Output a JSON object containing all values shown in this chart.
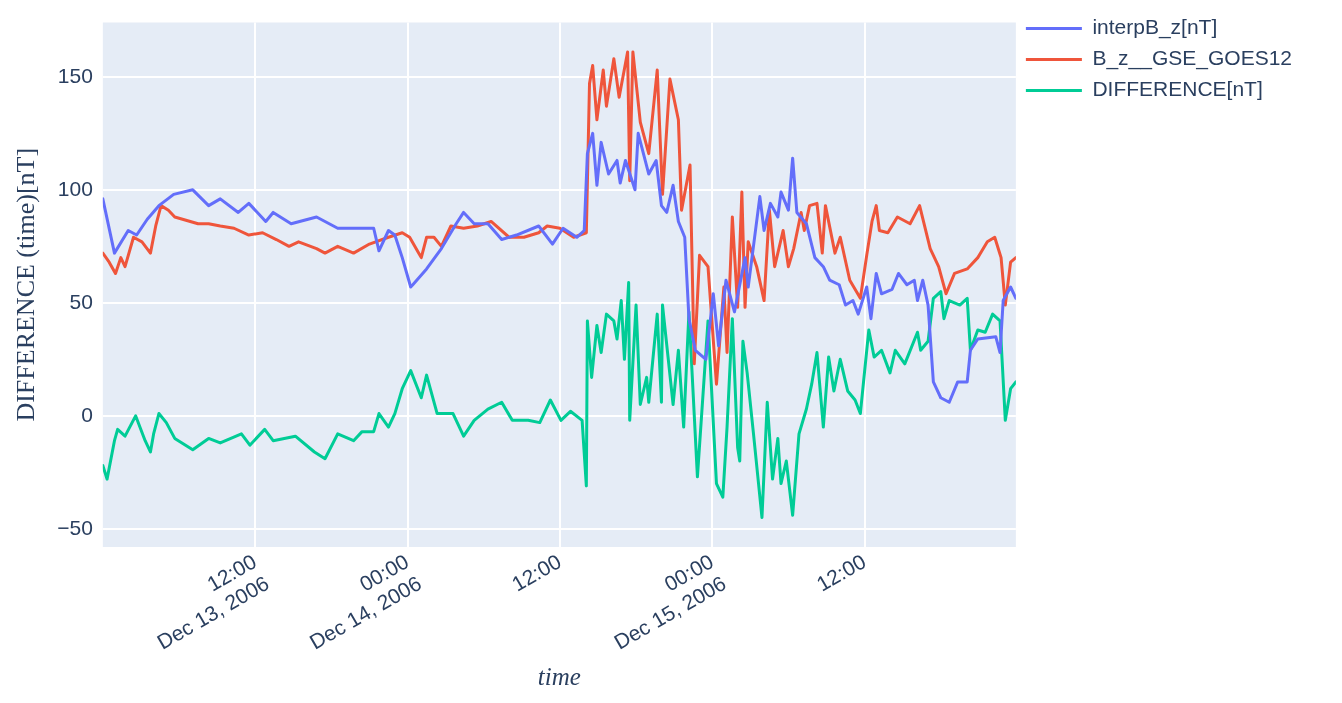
{
  "chart_data": {
    "type": "line",
    "xlabel": "time",
    "ylabel": "DIFFERENCE (time)[nT]",
    "xlim": [
      "2006-12-13T00:00",
      "2006-12-15T23:55"
    ],
    "ylim": [
      -58,
      174
    ],
    "xticks": [
      {
        "value": "2006-12-13T12:00",
        "label": "12:00\nDec 13, 2006"
      },
      {
        "value": "2006-12-14T00:00",
        "label": "00:00\nDec 14, 2006"
      },
      {
        "value": "2006-12-14T12:00",
        "label": "12:00"
      },
      {
        "value": "2006-12-15T00:00",
        "label": "00:00\nDec 15, 2006"
      },
      {
        "value": "2006-12-15T12:00",
        "label": "12:00"
      }
    ],
    "yticks": [
      {
        "value": -50,
        "label": "−50"
      },
      0,
      50,
      100,
      150
    ],
    "grid": true,
    "legend": "top right",
    "marker": "none",
    "line_style": "solid",
    "series": [
      {
        "name": "interpB_z[nT]",
        "color": "#636efa",
        "x": [
          "2006-12-13T00:00",
          "2006-12-13T00:55",
          "2006-12-13T02:00",
          "2006-12-13T02:40",
          "2006-12-13T03:30",
          "2006-12-13T04:25",
          "2006-12-13T05:35",
          "2006-12-13T07:05",
          "2006-12-13T08:20",
          "2006-12-13T09:15",
          "2006-12-13T10:40",
          "2006-12-13T11:30",
          "2006-12-13T12:50",
          "2006-12-13T13:25",
          "2006-12-13T14:50",
          "2006-12-13T16:50",
          "2006-12-13T18:30",
          "2006-12-13T19:55",
          "2006-12-13T21:20",
          "2006-12-13T21:45",
          "2006-12-13T22:30",
          "2006-12-13T23:00",
          "2006-12-13T23:35",
          "2006-12-14T00:15",
          "2006-12-14T00:25",
          "2006-12-14T01:30",
          "2006-12-14T02:40",
          "2006-12-14T03:50",
          "2006-12-14T04:25",
          "2006-12-14T05:15",
          "2006-12-14T06:20",
          "2006-12-14T07:25",
          "2006-12-14T08:35",
          "2006-12-14T10:20",
          "2006-12-14T11:25",
          "2006-12-14T12:15",
          "2006-12-14T13:20",
          "2006-12-14T13:55",
          "2006-12-14T14:10",
          "2006-12-14T14:35",
          "2006-12-14T14:55",
          "2006-12-14T15:15",
          "2006-12-14T15:50",
          "2006-12-14T16:30",
          "2006-12-14T16:45",
          "2006-12-14T17:10",
          "2006-12-14T17:55",
          "2006-12-14T18:10",
          "2006-12-14T19:00",
          "2006-12-14T19:35",
          "2006-12-14T20:00",
          "2006-12-14T20:25",
          "2006-12-14T20:55",
          "2006-12-14T21:20",
          "2006-12-14T21:50",
          "2006-12-14T22:10",
          "2006-12-14T22:40",
          "2006-12-14T23:30",
          "2006-12-15T00:05",
          "2006-12-15T00:30",
          "2006-12-15T01:05",
          "2006-12-15T01:45",
          "2006-12-15T02:35",
          "2006-12-15T02:50",
          "2006-12-15T03:45",
          "2006-12-15T04:05",
          "2006-12-15T04:35",
          "2006-12-15T05:10",
          "2006-12-15T05:25",
          "2006-12-15T06:00",
          "2006-12-15T06:20",
          "2006-12-15T06:40",
          "2006-12-15T07:25",
          "2006-12-15T08:05",
          "2006-12-15T08:45",
          "2006-12-15T09:15",
          "2006-12-15T10:00",
          "2006-12-15T10:30",
          "2006-12-15T11:05",
          "2006-12-15T11:30",
          "2006-12-15T12:10",
          "2006-12-15T12:30",
          "2006-12-15T12:55",
          "2006-12-15T13:20",
          "2006-12-15T14:10",
          "2006-12-15T14:40",
          "2006-12-15T15:20",
          "2006-12-15T15:55",
          "2006-12-15T16:10",
          "2006-12-15T16:35",
          "2006-12-15T17:00",
          "2006-12-15T17:25",
          "2006-12-15T18:00",
          "2006-12-15T18:40",
          "2006-12-15T19:20",
          "2006-12-15T20:05",
          "2006-12-15T20:20",
          "2006-12-15T20:55",
          "2006-12-15T22:20",
          "2006-12-15T22:40",
          "2006-12-15T22:55",
          "2006-12-15T23:30",
          "2006-12-15T23:55"
        ],
        "values": [
          96,
          72,
          82,
          80,
          87,
          93,
          98,
          100,
          93,
          96,
          90,
          94,
          86,
          90,
          85,
          88,
          83,
          83,
          83,
          73,
          82,
          80,
          70,
          57,
          58,
          65,
          74,
          85,
          90,
          85,
          85,
          78,
          80,
          84,
          76,
          83,
          79,
          82,
          116,
          125,
          102,
          121,
          107,
          113,
          103,
          113,
          100,
          125,
          107,
          113,
          93,
          90,
          102,
          86,
          79,
          43,
          29,
          25,
          54,
          31,
          60,
          46,
          70,
          57,
          97,
          82,
          94,
          88,
          99,
          91,
          114,
          90,
          85,
          70,
          66,
          60,
          58,
          49,
          51,
          45,
          57,
          43,
          63,
          54,
          56,
          63,
          58,
          60,
          51,
          60,
          49,
          15,
          8,
          6,
          15,
          15,
          29,
          34,
          35,
          28,
          51,
          57,
          52
        ]
      },
      {
        "name": "B_z__GSE_GOES12",
        "color": "#ef553b",
        "x": [
          "2006-12-13T00:00",
          "2006-12-13T00:30",
          "2006-12-13T01:00",
          "2006-12-13T01:25",
          "2006-12-13T01:45",
          "2006-12-13T02:25",
          "2006-12-13T03:05",
          "2006-12-13T03:45",
          "2006-12-13T04:10",
          "2006-12-13T04:35",
          "2006-12-13T05:10",
          "2006-12-13T05:40",
          "2006-12-13T07:30",
          "2006-12-13T08:20",
          "2006-12-13T09:15",
          "2006-12-13T10:20",
          "2006-12-13T11:30",
          "2006-12-13T12:35",
          "2006-12-13T13:40",
          "2006-12-13T14:40",
          "2006-12-13T15:25",
          "2006-12-13T16:50",
          "2006-12-13T17:30",
          "2006-12-13T18:30",
          "2006-12-13T19:45",
          "2006-12-13T21:00",
          "2006-12-13T22:30",
          "2006-12-13T23:35",
          "2006-12-14T00:10",
          "2006-12-14T01:05",
          "2006-12-14T01:30",
          "2006-12-14T02:05",
          "2006-12-14T02:40",
          "2006-12-14T03:25",
          "2006-12-14T04:25",
          "2006-12-14T05:30",
          "2006-12-14T06:35",
          "2006-12-14T08:00",
          "2006-12-14T09:10",
          "2006-12-14T10:20",
          "2006-12-14T11:00",
          "2006-12-14T12:00",
          "2006-12-14T13:05",
          "2006-12-14T14:05",
          "2006-12-14T14:20",
          "2006-12-14T14:35",
          "2006-12-14T14:55",
          "2006-12-14T15:25",
          "2006-12-14T15:40",
          "2006-12-14T16:15",
          "2006-12-14T16:40",
          "2006-12-14T17:20",
          "2006-12-14T17:30",
          "2006-12-14T17:45",
          "2006-12-14T18:20",
          "2006-12-14T19:00",
          "2006-12-14T19:40",
          "2006-12-14T20:05",
          "2006-12-14T20:40",
          "2006-12-14T21:20",
          "2006-12-14T21:35",
          "2006-12-14T22:15",
          "2006-12-14T22:35",
          "2006-12-14T23:00",
          "2006-12-14T23:40",
          "2006-12-15T00:20",
          "2006-12-15T00:55",
          "2006-12-15T01:10",
          "2006-12-15T01:35",
          "2006-12-15T02:00",
          "2006-12-15T02:20",
          "2006-12-15T02:35",
          "2006-12-15T02:50",
          "2006-12-15T03:30",
          "2006-12-15T04:05",
          "2006-12-15T04:30",
          "2006-12-15T04:55",
          "2006-12-15T05:35",
          "2006-12-15T06:00",
          "2006-12-15T06:25",
          "2006-12-15T07:00",
          "2006-12-15T07:15",
          "2006-12-15T07:40",
          "2006-12-15T08:15",
          "2006-12-15T08:40",
          "2006-12-15T08:55",
          "2006-12-15T09:40",
          "2006-12-15T10:05",
          "2006-12-15T10:50",
          "2006-12-15T11:40",
          "2006-12-15T12:10",
          "2006-12-15T12:35",
          "2006-12-15T12:55",
          "2006-12-15T13:10",
          "2006-12-15T13:50",
          "2006-12-15T14:35",
          "2006-12-15T15:35",
          "2006-12-15T16:20",
          "2006-12-15T17:10",
          "2006-12-15T17:50",
          "2006-12-15T18:25",
          "2006-12-15T19:05",
          "2006-12-15T20:05",
          "2006-12-15T20:55",
          "2006-12-15T21:40",
          "2006-12-15T22:15",
          "2006-12-15T22:45",
          "2006-12-15T23:05",
          "2006-12-15T23:30",
          "2006-12-15T23:55"
        ],
        "values": [
          72,
          68,
          63,
          70,
          66,
          79,
          77,
          72,
          84,
          93,
          91,
          88,
          85,
          85,
          84,
          83,
          80,
          81,
          78,
          75,
          77,
          74,
          72,
          75,
          72,
          76,
          79,
          81,
          79,
          70,
          79,
          79,
          75,
          84,
          83,
          84,
          86,
          79,
          79,
          81,
          84,
          83,
          79,
          81,
          147,
          155,
          131,
          153,
          137,
          158,
          141,
          161,
          104,
          161,
          130,
          116,
          153,
          98,
          149,
          131,
          91,
          111,
          23,
          71,
          66,
          14,
          57,
          28,
          88,
          48,
          99,
          48,
          77,
          66,
          51,
          91,
          66,
          82,
          66,
          74,
          90,
          82,
          93,
          94,
          72,
          93,
          72,
          79,
          60,
          52,
          71,
          86,
          93,
          82,
          81,
          88,
          85,
          93,
          74,
          66,
          54,
          63,
          65,
          70,
          77,
          79,
          70,
          49,
          68,
          70
        ]
      },
      {
        "name": "DIFFERENCE[nT]",
        "color": "#00cc96",
        "x": [
          "2006-12-13T00:00",
          "2006-12-13T00:20",
          "2006-12-13T00:55",
          "2006-12-13T01:10",
          "2006-12-13T01:45",
          "2006-12-13T02:35",
          "2006-12-13T03:20",
          "2006-12-13T03:45",
          "2006-12-13T04:00",
          "2006-12-13T04:25",
          "2006-12-13T05:00",
          "2006-12-13T05:40",
          "2006-12-13T07:05",
          "2006-12-13T08:20",
          "2006-12-13T09:15",
          "2006-12-13T10:55",
          "2006-12-13T11:35",
          "2006-12-13T12:45",
          "2006-12-13T13:25",
          "2006-12-13T15:10",
          "2006-12-13T16:40",
          "2006-12-13T17:30",
          "2006-12-13T18:30",
          "2006-12-13T19:45",
          "2006-12-13T20:25",
          "2006-12-13T21:20",
          "2006-12-13T21:45",
          "2006-12-13T22:30",
          "2006-12-13T23:00",
          "2006-12-13T23:35",
          "2006-12-14T00:15",
          "2006-12-14T01:05",
          "2006-12-14T01:30",
          "2006-12-14T02:20",
          "2006-12-14T03:35",
          "2006-12-14T04:25",
          "2006-12-14T05:15",
          "2006-12-14T06:20",
          "2006-12-14T07:25",
          "2006-12-14T08:15",
          "2006-12-14T09:30",
          "2006-12-14T10:25",
          "2006-12-14T11:15",
          "2006-12-14T12:05",
          "2006-12-14T12:50",
          "2006-12-14T13:45",
          "2006-12-14T14:05",
          "2006-12-14T14:10",
          "2006-12-14T14:30",
          "2006-12-14T14:55",
          "2006-12-14T15:15",
          "2006-12-14T15:40",
          "2006-12-14T16:15",
          "2006-12-14T16:30",
          "2006-12-14T16:50",
          "2006-12-14T17:05",
          "2006-12-14T17:25",
          "2006-12-14T17:30",
          "2006-12-14T18:00",
          "2006-12-14T18:20",
          "2006-12-14T18:50",
          "2006-12-14T19:00",
          "2006-12-14T19:40",
          "2006-12-14T20:00",
          "2006-12-14T20:05",
          "2006-12-14T20:55",
          "2006-12-14T21:20",
          "2006-12-14T21:45",
          "2006-12-14T22:10",
          "2006-12-14T22:50",
          "2006-12-14T23:40",
          "2006-12-15T00:20",
          "2006-12-15T00:50",
          "2006-12-15T01:10",
          "2006-12-15T01:35",
          "2006-12-15T02:00",
          "2006-12-15T02:10",
          "2006-12-15T02:25",
          "2006-12-15T02:45",
          "2006-12-15T03:15",
          "2006-12-15T03:55",
          "2006-12-15T04:20",
          "2006-12-15T04:45",
          "2006-12-15T05:10",
          "2006-12-15T05:25",
          "2006-12-15T05:50",
          "2006-12-15T06:20",
          "2006-12-15T06:50",
          "2006-12-15T07:25",
          "2006-12-15T07:50",
          "2006-12-15T08:15",
          "2006-12-15T08:45",
          "2006-12-15T09:10",
          "2006-12-15T09:35",
          "2006-12-15T10:05",
          "2006-12-15T10:40",
          "2006-12-15T11:15",
          "2006-12-15T11:40",
          "2006-12-15T11:55",
          "2006-12-15T12:20",
          "2006-12-15T12:45",
          "2006-12-15T13:20",
          "2006-12-15T14:00",
          "2006-12-15T14:25",
          "2006-12-15T15:10",
          "2006-12-15T16:10",
          "2006-12-15T16:25",
          "2006-12-15T17:00",
          "2006-12-15T17:25",
          "2006-12-15T18:00",
          "2006-12-15T18:15",
          "2006-12-15T18:40",
          "2006-12-15T19:30",
          "2006-12-15T20:05",
          "2006-12-15T20:20",
          "2006-12-15T20:55",
          "2006-12-15T21:30",
          "2006-12-15T22:05",
          "2006-12-15T22:40",
          "2006-12-15T23:05",
          "2006-12-15T23:30",
          "2006-12-15T23:55"
        ],
        "values": [
          -22,
          -28,
          -11,
          -6,
          -9,
          0,
          -11,
          -16,
          -8,
          1,
          -3,
          -10,
          -15,
          -10,
          -12,
          -8,
          -13,
          -6,
          -11,
          -9,
          -16,
          -19,
          -8,
          -11,
          -7,
          -7,
          1,
          -5,
          1,
          12,
          20,
          8,
          18,
          1,
          1,
          -9,
          -2,
          3,
          6,
          -2,
          -2,
          -3,
          7,
          -2,
          2,
          -2,
          -31,
          42,
          17,
          40,
          28,
          45,
          42,
          34,
          51,
          25,
          59,
          -2,
          49,
          5,
          17,
          6,
          45,
          6,
          49,
          5,
          29,
          -5,
          46,
          -27,
          42,
          -30,
          -36,
          -5,
          43,
          -14,
          -20,
          33,
          19,
          -8,
          -45,
          6,
          -28,
          -10,
          -30,
          -20,
          -44,
          -8,
          3,
          14,
          28,
          -5,
          26,
          11,
          25,
          11,
          7,
          1,
          15,
          38,
          26,
          29,
          19,
          29,
          23,
          37,
          29,
          33,
          52,
          55,
          43,
          51,
          49,
          52,
          29,
          38,
          37,
          45,
          42,
          -2,
          12,
          15
        ]
      }
    ]
  }
}
